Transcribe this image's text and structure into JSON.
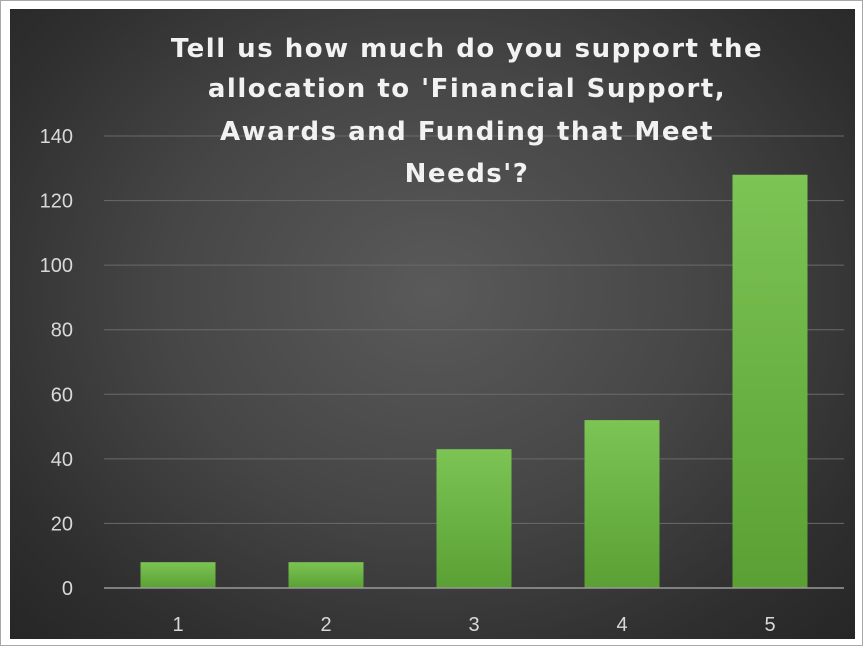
{
  "chart_data": {
    "type": "bar",
    "title_lines": [
      "Tell us how much do you support the",
      "allocation to 'Financial Support,",
      "Awards and Funding that Meet",
      "Needs'?"
    ],
    "categories": [
      "1",
      "2",
      "3",
      "4",
      "5"
    ],
    "values": [
      8,
      8,
      43,
      52,
      128
    ],
    "ylim": [
      0,
      140
    ],
    "yticks": [
      "0",
      "20",
      "40",
      "60",
      "80",
      "100",
      "120",
      "140"
    ],
    "xlabel": "",
    "ylabel": "",
    "grid": true,
    "legend": "none",
    "colors": {
      "bar_top": "#7cc454",
      "bar_bottom": "#5aa034",
      "grid": "#6a6a6a",
      "axis": "#9a9a9a"
    }
  }
}
